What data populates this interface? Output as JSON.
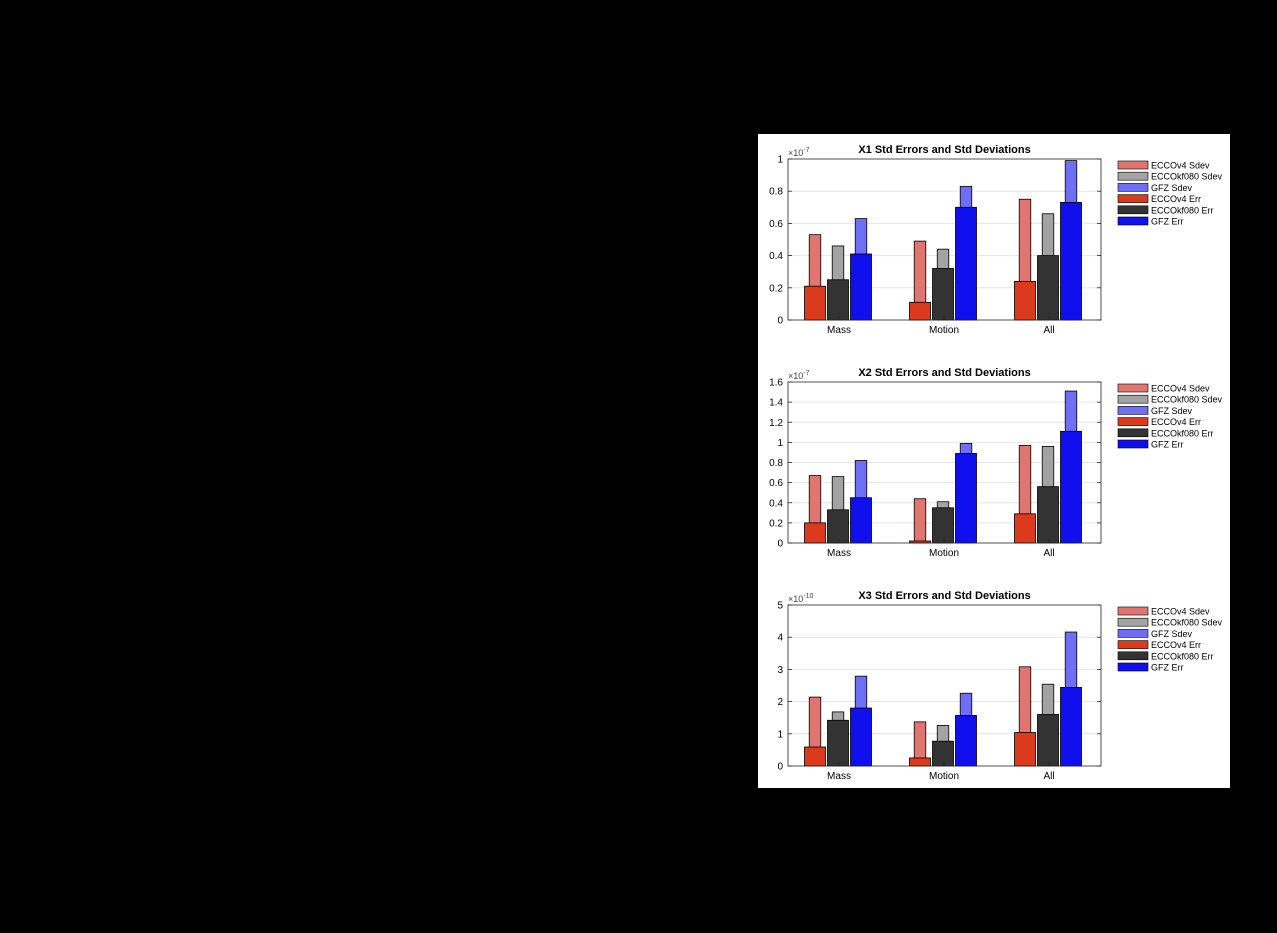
{
  "background": "#000000",
  "legend_colors": {
    "ECCOv4 Sdev": "#e0766f",
    "ECCOkf080 Sdev": "#a3a3a3",
    "GFZ Sdev": "#6f6ff5",
    "ECCOv4 Err": "#db3a1c",
    "ECCOkf080 Err": "#333333",
    "GFZ Err": "#1010ee"
  },
  "chart_data": [
    {
      "type": "bar",
      "title": "X1 Std Errors and Std Deviations",
      "categories": [
        "Mass",
        "Motion",
        "All"
      ],
      "ylim": [
        0,
        1
      ],
      "yticks": [
        "0",
        "0.2",
        "0.4",
        "0.6",
        "0.8",
        "1"
      ],
      "ytick_values": [
        0,
        0.2,
        0.4,
        0.6,
        0.8,
        1
      ],
      "exponent_base": "×10",
      "exponent_power": "-7",
      "grid": true,
      "legend_position": "right",
      "series": [
        {
          "name": "ECCOv4 Sdev",
          "values": [
            0.53,
            0.49,
            0.75
          ]
        },
        {
          "name": "ECCOkf080 Sdev",
          "values": [
            0.46,
            0.44,
            0.66
          ]
        },
        {
          "name": "GFZ Sdev",
          "values": [
            0.63,
            0.83,
            0.99
          ]
        },
        {
          "name": "ECCOv4 Err",
          "values": [
            0.21,
            0.11,
            0.24
          ]
        },
        {
          "name": "ECCOkf080 Err",
          "values": [
            0.25,
            0.32,
            0.4
          ]
        },
        {
          "name": "GFZ Err",
          "values": [
            0.41,
            0.7,
            0.73
          ]
        }
      ]
    },
    {
      "type": "bar",
      "title": "X2 Std Errors and Std Deviations",
      "categories": [
        "Mass",
        "Motion",
        "All"
      ],
      "ylim": [
        0,
        1.6
      ],
      "yticks": [
        "0",
        "0.2",
        "0.4",
        "0.6",
        "0.8",
        "1",
        "1.2",
        "1.4",
        "1.6"
      ],
      "ytick_values": [
        0,
        0.2,
        0.4,
        0.6,
        0.8,
        1,
        1.2,
        1.4,
        1.6
      ],
      "exponent_base": "×10",
      "exponent_power": "-7",
      "grid": true,
      "legend_position": "right",
      "series": [
        {
          "name": "ECCOv4 Sdev",
          "values": [
            0.67,
            0.44,
            0.97
          ]
        },
        {
          "name": "ECCOkf080 Sdev",
          "values": [
            0.66,
            0.41,
            0.96
          ]
        },
        {
          "name": "GFZ Sdev",
          "values": [
            0.82,
            0.99,
            1.51
          ]
        },
        {
          "name": "ECCOv4 Err",
          "values": [
            0.2,
            0.02,
            0.29
          ]
        },
        {
          "name": "ECCOkf080 Err",
          "values": [
            0.33,
            0.35,
            0.56
          ]
        },
        {
          "name": "GFZ Err",
          "values": [
            0.45,
            0.89,
            1.11
          ]
        }
      ]
    },
    {
      "type": "bar",
      "title": "X3 Std Errors and Std Deviations",
      "categories": [
        "Mass",
        "Motion",
        "All"
      ],
      "ylim": [
        0,
        5
      ],
      "yticks": [
        "0",
        "1",
        "2",
        "3",
        "4",
        "5"
      ],
      "ytick_values": [
        0,
        1,
        2,
        3,
        4,
        5
      ],
      "exponent_base": "×10",
      "exponent_power": "-10",
      "grid": true,
      "legend_position": "right",
      "series": [
        {
          "name": "ECCOv4 Sdev",
          "values": [
            2.14,
            1.37,
            3.08
          ]
        },
        {
          "name": "ECCOkf080 Sdev",
          "values": [
            1.68,
            1.26,
            2.54
          ]
        },
        {
          "name": "GFZ Sdev",
          "values": [
            2.79,
            2.26,
            4.16
          ]
        },
        {
          "name": "ECCOv4 Err",
          "values": [
            0.59,
            0.25,
            1.04
          ]
        },
        {
          "name": "ECCOkf080 Err",
          "values": [
            1.42,
            0.77,
            1.6
          ]
        },
        {
          "name": "GFZ Err",
          "values": [
            1.8,
            1.57,
            2.44
          ]
        }
      ]
    }
  ]
}
